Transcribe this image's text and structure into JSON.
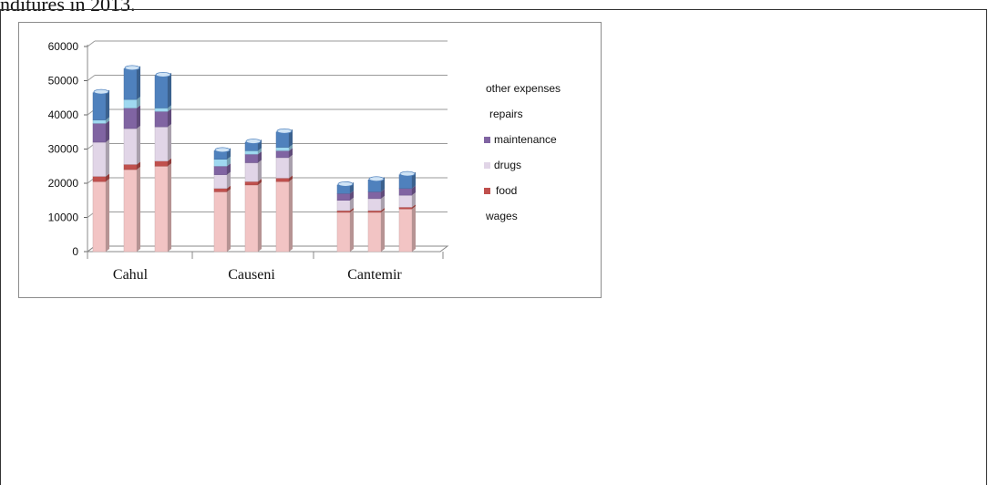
{
  "page": {
    "caption": "nditures in 2013."
  },
  "chart_data": {
    "type": "bar",
    "stacked": true,
    "categories": [
      "Cahul",
      "Causeni",
      "Cantemir"
    ],
    "ylim": [
      0,
      60000
    ],
    "yticks": [
      0,
      10000,
      20000,
      30000,
      40000,
      50000,
      60000
    ],
    "ytick_labels": [
      "0",
      "10000",
      "20000",
      "30000",
      "40000",
      "50000",
      "60000"
    ],
    "bars_per_category": 3,
    "series": [
      {
        "name": "wages",
        "color": "#f2c4c4",
        "values": [
          [
            20500,
            24000,
            25000
          ],
          [
            17500,
            19500,
            20500
          ],
          [
            11500,
            11500,
            12500
          ]
        ]
      },
      {
        "name": "food",
        "color": "#c0504d",
        "values": [
          [
            1500,
            1500,
            1500
          ],
          [
            1000,
            1000,
            1000
          ],
          [
            500,
            500,
            500
          ]
        ]
      },
      {
        "name": "drugs",
        "color": "#e1d5e7",
        "values": [
          [
            10000,
            10500,
            10000
          ],
          [
            4000,
            5500,
            6000
          ],
          [
            3000,
            3500,
            3500
          ]
        ]
      },
      {
        "name": "maintenance",
        "color": "#8064a2",
        "values": [
          [
            5500,
            6000,
            4500
          ],
          [
            2500,
            2500,
            2000
          ],
          [
            2000,
            2000,
            2000
          ]
        ]
      },
      {
        "name": "repairs",
        "color": "#9fd8f0",
        "values": [
          [
            1000,
            2500,
            1000
          ],
          [
            2000,
            1000,
            1000
          ],
          [
            0,
            0,
            0
          ]
        ]
      },
      {
        "name": "other expenses",
        "color": "#4f81bd",
        "values": [
          [
            8000,
            9000,
            9500
          ],
          [
            2500,
            2500,
            4500
          ],
          [
            2500,
            3500,
            4000
          ]
        ]
      }
    ],
    "legend": {
      "placement": "right",
      "entries": [
        {
          "label": "other expenses",
          "swatch": false,
          "color": "#4f81bd"
        },
        {
          "label": "repairs",
          "swatch": false,
          "color": "#9fd8f0"
        },
        {
          "label": "maintenance",
          "swatch": true,
          "color": "#8064a2"
        },
        {
          "label": "drugs",
          "swatch": true,
          "color": "#e1d5e7"
        },
        {
          "label": "food",
          "swatch": true,
          "color": "#c0504d"
        },
        {
          "label": "wages",
          "swatch": false,
          "color": "#f2c4c4"
        }
      ]
    },
    "grid": true
  }
}
